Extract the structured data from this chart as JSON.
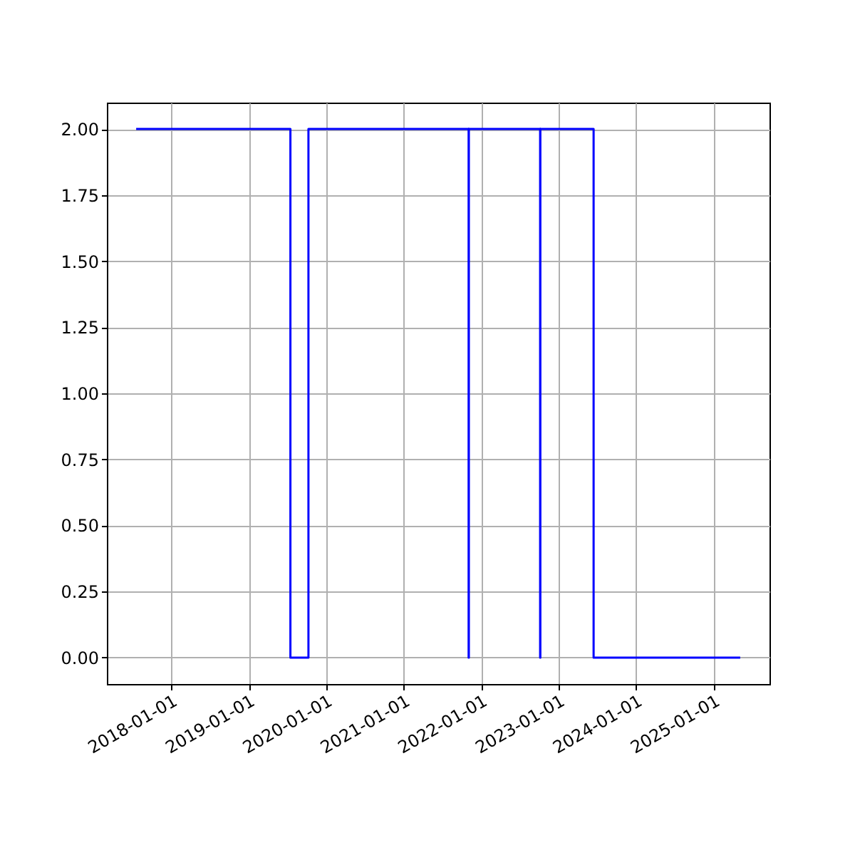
{
  "chart_data": {
    "type": "step",
    "x": [
      "2017-07-19",
      "2019-07-16",
      "2019-10-09",
      "2021-11-02",
      "2021-11-03",
      "2022-10-05",
      "2022-10-06",
      "2023-06-14",
      "2025-05-05"
    ],
    "series": [
      {
        "color": "#0000ff",
        "values": [
          2,
          0,
          2,
          0,
          2,
          0,
          2,
          0,
          0
        ]
      }
    ],
    "xlim": [
      "2017-03-03",
      "2025-09-20"
    ],
    "xticks": [
      "2018-01-01",
      "2019-01-01",
      "2020-01-01",
      "2021-01-01",
      "2022-01-01",
      "2023-01-01",
      "2024-01-01",
      "2025-01-01"
    ],
    "ylim": [
      -0.1,
      2.1
    ],
    "yticks": [
      {
        "value": 0,
        "label": "0.00"
      },
      {
        "value": 0.25,
        "label": "0.25"
      },
      {
        "value": 0.5,
        "label": "0.50"
      },
      {
        "value": 0.75,
        "label": "0.75"
      },
      {
        "value": 1,
        "label": "1.00"
      },
      {
        "value": 1.25,
        "label": "1.25"
      },
      {
        "value": 1.5,
        "label": "1.50"
      },
      {
        "value": 1.75,
        "label": "1.75"
      },
      {
        "value": 2,
        "label": "2.00"
      }
    ],
    "grid": true
  }
}
